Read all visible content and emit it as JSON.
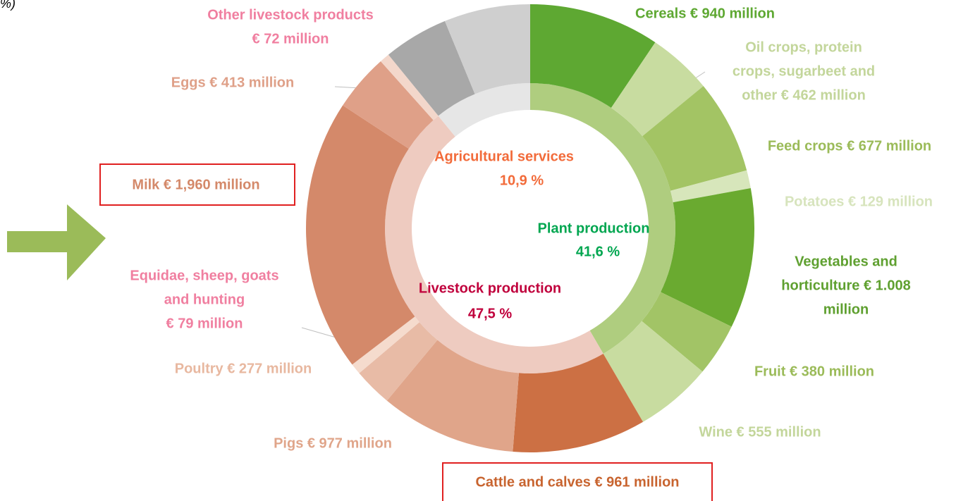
{
  "cropped_text": "%)",
  "chart_data": {
    "type": "sunburst",
    "series": [
      {
        "categories": [
          "Plant production",
          "Livestock production",
          "Agricultural services"
        ],
        "values": [
          41.6,
          47.5,
          10.9
        ],
        "value_labels": [
          "41,6 %",
          "47,5 %",
          "10,9 %"
        ],
        "colors": [
          "#afcd7f",
          "#eecbc0",
          "#e6e6e6"
        ],
        "label_colors": [
          "#00a650",
          "#c0003c",
          "#f26b3a"
        ]
      },
      {
        "labels": [
          [
            "Cereals € 940 million"
          ],
          [
            "Oil crops, protein",
            "crops, sugarbeet and",
            "other € 462 million"
          ],
          [
            "Feed crops € 677 million"
          ],
          [
            "Potatoes € 129 million"
          ],
          [
            "Vegetables and",
            "horticulture € 1.008",
            "million"
          ],
          [
            "Fruit € 380 million"
          ],
          [
            "Wine € 555 million"
          ],
          [
            "Cattle and calves € 961 million"
          ],
          [
            "Pigs € 977 million"
          ],
          [
            "Poultry € 277 million"
          ],
          [
            "Equidae, sheep, goats",
            "and hunting",
            "€ 79 million"
          ],
          [
            "Milk € 1,960 million"
          ],
          [
            "Eggs € 413 million"
          ],
          [
            "Other livestock products",
            "€ 72 million"
          ],
          null,
          null
        ],
        "values": [
          940,
          462,
          677,
          129,
          1008,
          380,
          555,
          961,
          977,
          277,
          79,
          1960,
          413,
          72,
          467,
          620
        ],
        "colors": [
          "#5ea832",
          "#c8dca0",
          "#a3c464",
          "#d7e6bb",
          "#6aaa30",
          "#a2c466",
          "#c8dca0",
          "#cc7044",
          "#e0a58a",
          "#e8bba6",
          "#f5dbcd",
          "#d4896a",
          "#dfa088",
          "#f3d7cb",
          "#a8a8a8",
          "#cfcfcf"
        ],
        "label_colors": [
          "#5ea832",
          "#c3d69b",
          "#9bbb59",
          "#d7e4bd",
          "#5fa030",
          "#9bbb59",
          "#c3d69b",
          "#c8642f",
          "#e0a58a",
          "#e8b8a0",
          "#f07fa0",
          "#d4896a",
          "#dfa088",
          "#f07fa0",
          null,
          null
        ]
      }
    ]
  }
}
